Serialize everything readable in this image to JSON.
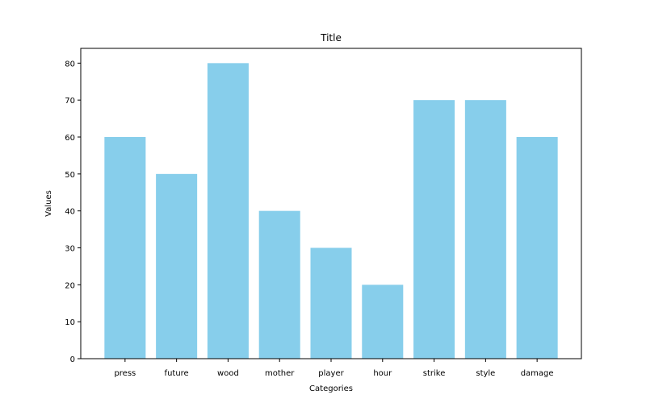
{
  "chart_data": {
    "type": "bar",
    "title": "Title",
    "xlabel": "Categories",
    "ylabel": "Values",
    "categories": [
      "press",
      "future",
      "wood",
      "mother",
      "player",
      "hour",
      "strike",
      "style",
      "damage"
    ],
    "values": [
      60,
      50,
      80,
      40,
      30,
      20,
      70,
      70,
      60
    ],
    "ylim": [
      0,
      84
    ],
    "yticks": [
      0,
      10,
      20,
      30,
      40,
      50,
      60,
      70,
      80
    ],
    "bar_color": "#87CEEB",
    "grid": false,
    "legend": "none"
  }
}
